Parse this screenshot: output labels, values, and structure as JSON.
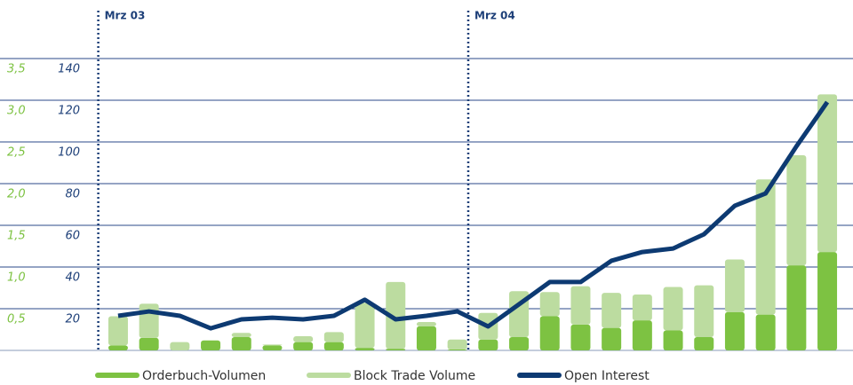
{
  "chart_data": {
    "type": "bar",
    "categories": [
      "Mrz 03",
      null,
      null,
      null,
      null,
      null,
      null,
      null,
      null,
      null,
      null,
      null,
      "Mrz 04",
      null,
      null,
      null,
      null,
      null,
      null,
      null,
      null,
      null,
      null,
      null
    ],
    "series": [
      {
        "name": "Orderbuch-Volumen",
        "color": "#7dc242",
        "values": [
          0.06,
          0.15,
          0,
          0.12,
          0.16,
          0.06,
          0.1,
          0.1,
          0.03,
          0.02,
          0.29,
          0.01,
          0.13,
          0.16,
          0.41,
          0.31,
          0.27,
          0.36,
          0.24,
          0.16,
          0.46,
          0.43,
          1.02,
          1.18
        ]
      },
      {
        "name": "Block Trade Volume",
        "color": "#bcdca0",
        "values": [
          0.35,
          0.41,
          0.1,
          0,
          0.05,
          0.01,
          0.07,
          0.12,
          0.54,
          0.8,
          0.05,
          0.12,
          0.32,
          0.55,
          0.29,
          0.46,
          0.42,
          0.31,
          0.52,
          0.62,
          0.63,
          1.62,
          1.32,
          1.89
        ]
      },
      {
        "name": "Open Interest",
        "color": "#0d3a72",
        "axis": "y2",
        "values": [
          16.6,
          18.7,
          16.6,
          10.6,
          14.9,
          15.7,
          14.9,
          16.6,
          24.3,
          14.9,
          16.6,
          18.7,
          11.5,
          22.1,
          32.8,
          32.8,
          43,
          47.2,
          48.9,
          55.7,
          69.4,
          75.3,
          97.9,
          119.1
        ]
      }
    ],
    "ylim": [
      0,
      3.5
    ],
    "yticks": [
      {
        "value": 0.5,
        "label": "0,5"
      },
      {
        "value": 1,
        "label": "1,0"
      },
      {
        "value": 1.5,
        "label": "1,5"
      },
      {
        "value": 2,
        "label": "2,0"
      },
      {
        "value": 2.5,
        "label": "2,5"
      },
      {
        "value": 3,
        "label": "3,0"
      },
      {
        "value": 3.5,
        "label": "3,5"
      }
    ],
    "y2lim": [
      0,
      140
    ],
    "y2ticks": [
      20,
      40,
      60,
      80,
      100,
      120,
      140
    ],
    "grid": true
  }
}
